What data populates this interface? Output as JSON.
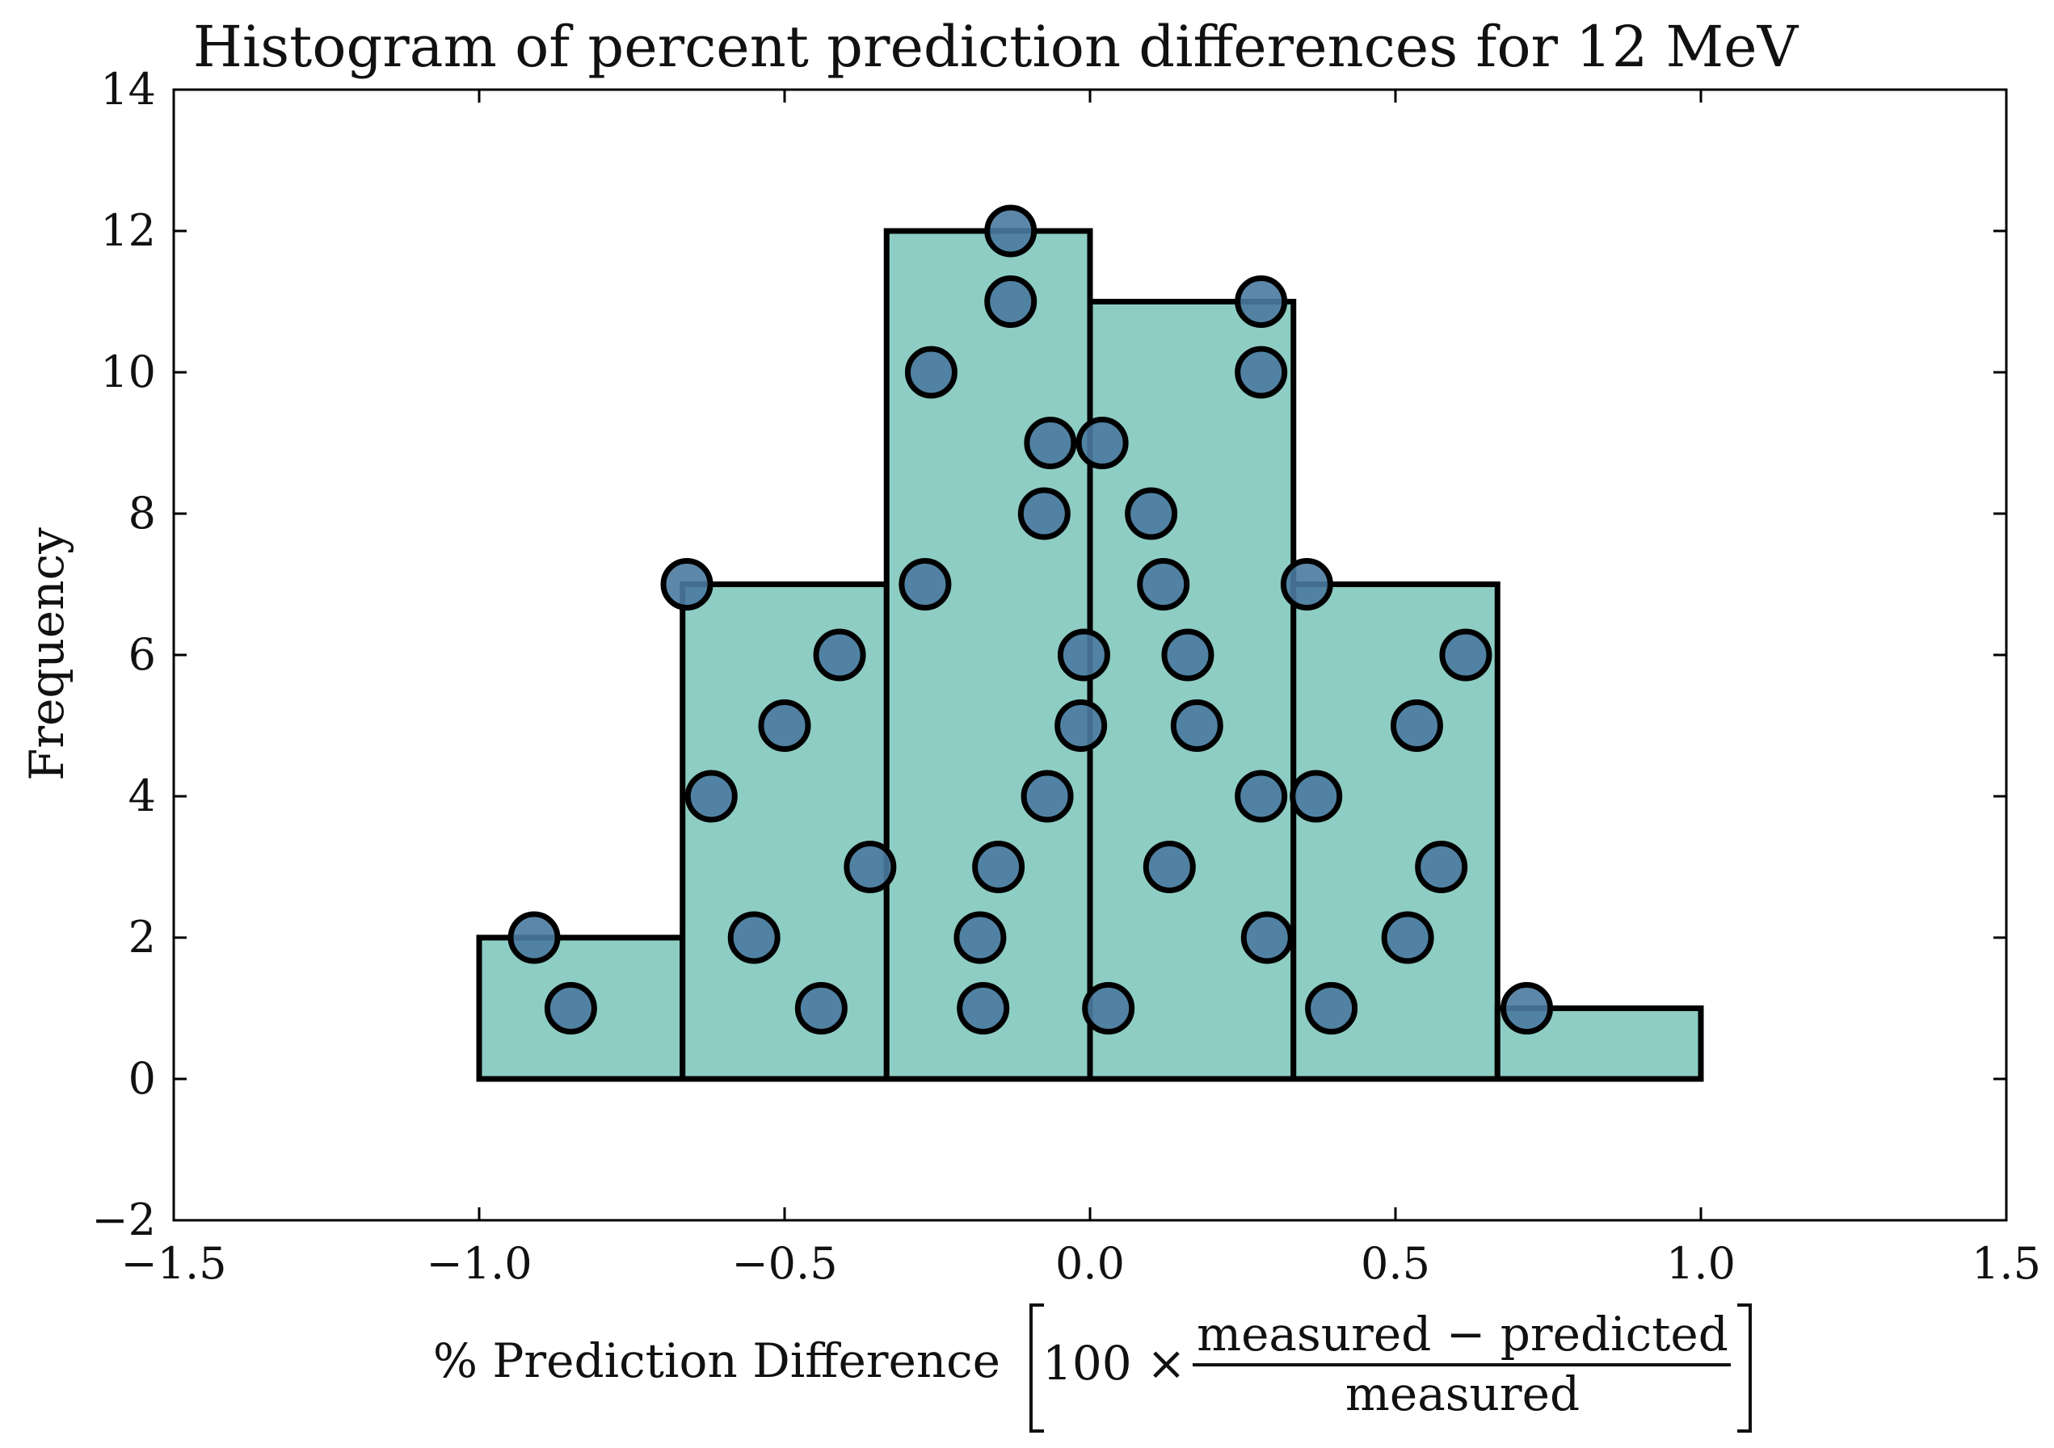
{
  "chart_data": {
    "type": "bar",
    "title": "Histogram of percent prediction differences for 12 MeV",
    "ylabel": "Frequency",
    "xlabel": {
      "prefix": "% Prediction Difference",
      "multiplier": "100 ×",
      "numerator": "measured − predicted",
      "denominator": "measured"
    },
    "xlim": [
      -1.5,
      1.5
    ],
    "ylim": [
      -2,
      14
    ],
    "xticks": [
      -1.5,
      -1.0,
      -0.5,
      0.0,
      0.5,
      1.0,
      1.5
    ],
    "xtick_labels": [
      "−1.5",
      "−1.0",
      "−0.5",
      "0.0",
      "0.5",
      "1.0",
      "1.5"
    ],
    "yticks": [
      -2,
      0,
      2,
      4,
      6,
      8,
      10,
      12,
      14
    ],
    "ytick_labels": [
      "−2",
      "0",
      "2",
      "4",
      "6",
      "8",
      "10",
      "12",
      "14"
    ],
    "bins": [
      {
        "left": -1.0,
        "right": -0.667,
        "count": 2
      },
      {
        "left": -0.667,
        "right": -0.333,
        "count": 7
      },
      {
        "left": -0.333,
        "right": 0.0,
        "count": 12
      },
      {
        "left": 0.0,
        "right": 0.333,
        "count": 11
      },
      {
        "left": 0.333,
        "right": 0.667,
        "count": 7
      },
      {
        "left": 0.667,
        "right": 1.0,
        "count": 1
      }
    ],
    "points": [
      {
        "x": -0.91,
        "y": 2
      },
      {
        "x": -0.85,
        "y": 1
      },
      {
        "x": -0.66,
        "y": 7
      },
      {
        "x": -0.62,
        "y": 4
      },
      {
        "x": -0.5,
        "y": 5
      },
      {
        "x": -0.41,
        "y": 6
      },
      {
        "x": -0.36,
        "y": 3
      },
      {
        "x": -0.55,
        "y": 2
      },
      {
        "x": -0.44,
        "y": 1
      },
      {
        "x": -0.13,
        "y": 12
      },
      {
        "x": -0.13,
        "y": 11
      },
      {
        "x": -0.26,
        "y": 10
      },
      {
        "x": -0.065,
        "y": 9
      },
      {
        "x": -0.075,
        "y": 8
      },
      {
        "x": -0.27,
        "y": 7
      },
      {
        "x": -0.01,
        "y": 6
      },
      {
        "x": -0.015,
        "y": 5
      },
      {
        "x": -0.07,
        "y": 4
      },
      {
        "x": -0.15,
        "y": 3
      },
      {
        "x": -0.18,
        "y": 2
      },
      {
        "x": -0.175,
        "y": 1
      },
      {
        "x": 0.28,
        "y": 11
      },
      {
        "x": 0.28,
        "y": 10
      },
      {
        "x": 0.02,
        "y": 9
      },
      {
        "x": 0.1,
        "y": 8
      },
      {
        "x": 0.12,
        "y": 7
      },
      {
        "x": 0.16,
        "y": 6
      },
      {
        "x": 0.175,
        "y": 5
      },
      {
        "x": 0.28,
        "y": 4
      },
      {
        "x": 0.13,
        "y": 3
      },
      {
        "x": 0.29,
        "y": 2
      },
      {
        "x": 0.03,
        "y": 1
      },
      {
        "x": 0.355,
        "y": 7
      },
      {
        "x": 0.615,
        "y": 6
      },
      {
        "x": 0.535,
        "y": 5
      },
      {
        "x": 0.37,
        "y": 4
      },
      {
        "x": 0.575,
        "y": 3
      },
      {
        "x": 0.52,
        "y": 2
      },
      {
        "x": 0.395,
        "y": 1
      },
      {
        "x": 0.715,
        "y": 1
      }
    ],
    "grid": false,
    "colors": {
      "bar_fill": "#8ecdc4",
      "bar_edge": "#000000",
      "point_fill": "#4a7aa0",
      "point_edge": "#000000"
    }
  }
}
